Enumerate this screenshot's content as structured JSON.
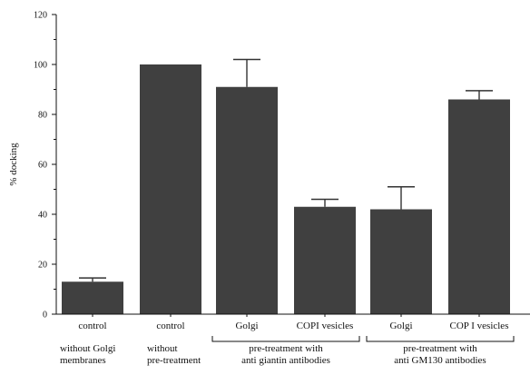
{
  "chart_data": {
    "type": "bar",
    "title": "",
    "xlabel": "",
    "ylabel": "% docking",
    "ylim": [
      0,
      120
    ],
    "yticks": [
      0,
      20,
      40,
      60,
      80,
      100,
      120
    ],
    "grid": false,
    "bar_color": "#404040",
    "categories": [
      "control",
      "control",
      "Golgi",
      "COPI vesicles",
      "Golgi",
      "COP I vesicles"
    ],
    "values": [
      13,
      100,
      91,
      43,
      42,
      86
    ],
    "errors": [
      1.5,
      0,
      11,
      3,
      9,
      3.5
    ],
    "groups": [
      {
        "lines": [
          "without Golgi",
          "membranes"
        ],
        "bars": [
          0
        ],
        "bracket": false
      },
      {
        "lines": [
          "without",
          "pre-treatment"
        ],
        "bars": [
          1
        ],
        "bracket": false
      },
      {
        "lines": [
          "pre-treatment with",
          "anti giantin antibodies"
        ],
        "bars": [
          2,
          3
        ],
        "bracket": true
      },
      {
        "lines": [
          "pre-treatment with",
          "anti GM130 antibodies"
        ],
        "bars": [
          4,
          5
        ],
        "bracket": true
      }
    ]
  }
}
